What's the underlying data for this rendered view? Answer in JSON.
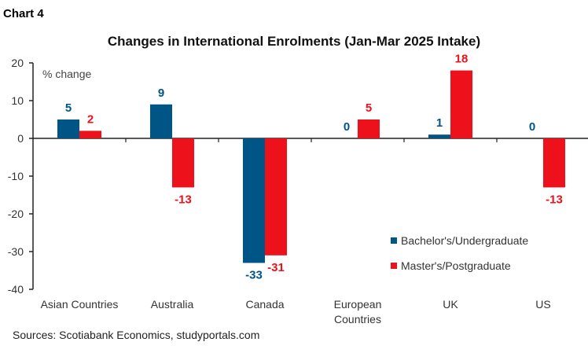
{
  "chart_label": "Chart 4",
  "source": "Sources: Scotiabank Economics, studyportals.com",
  "colors": {
    "bachelor": "#005587",
    "master": "#ec111a"
  },
  "chart_data": {
    "type": "bar",
    "title": "Changes in International Enrolments (Jan-Mar 2025 Intake)",
    "ylabel": "% change",
    "ylim": [
      -40,
      20
    ],
    "yticks": [
      20,
      10,
      0,
      -10,
      -20,
      -30,
      -40
    ],
    "categories": [
      [
        "Asian Countries"
      ],
      [
        "Australia"
      ],
      [
        "Canada"
      ],
      [
        "European",
        "Countries"
      ],
      [
        "UK"
      ],
      [
        "US"
      ]
    ],
    "series": [
      {
        "name": "Bachelor's/Undergraduate",
        "values": [
          5,
          9,
          -33,
          0,
          1,
          0
        ]
      },
      {
        "name": "Master's/Postgraduate",
        "values": [
          2,
          -13,
          -31,
          5,
          18,
          -13
        ]
      }
    ],
    "grid": false,
    "legend": "bottom-right"
  }
}
